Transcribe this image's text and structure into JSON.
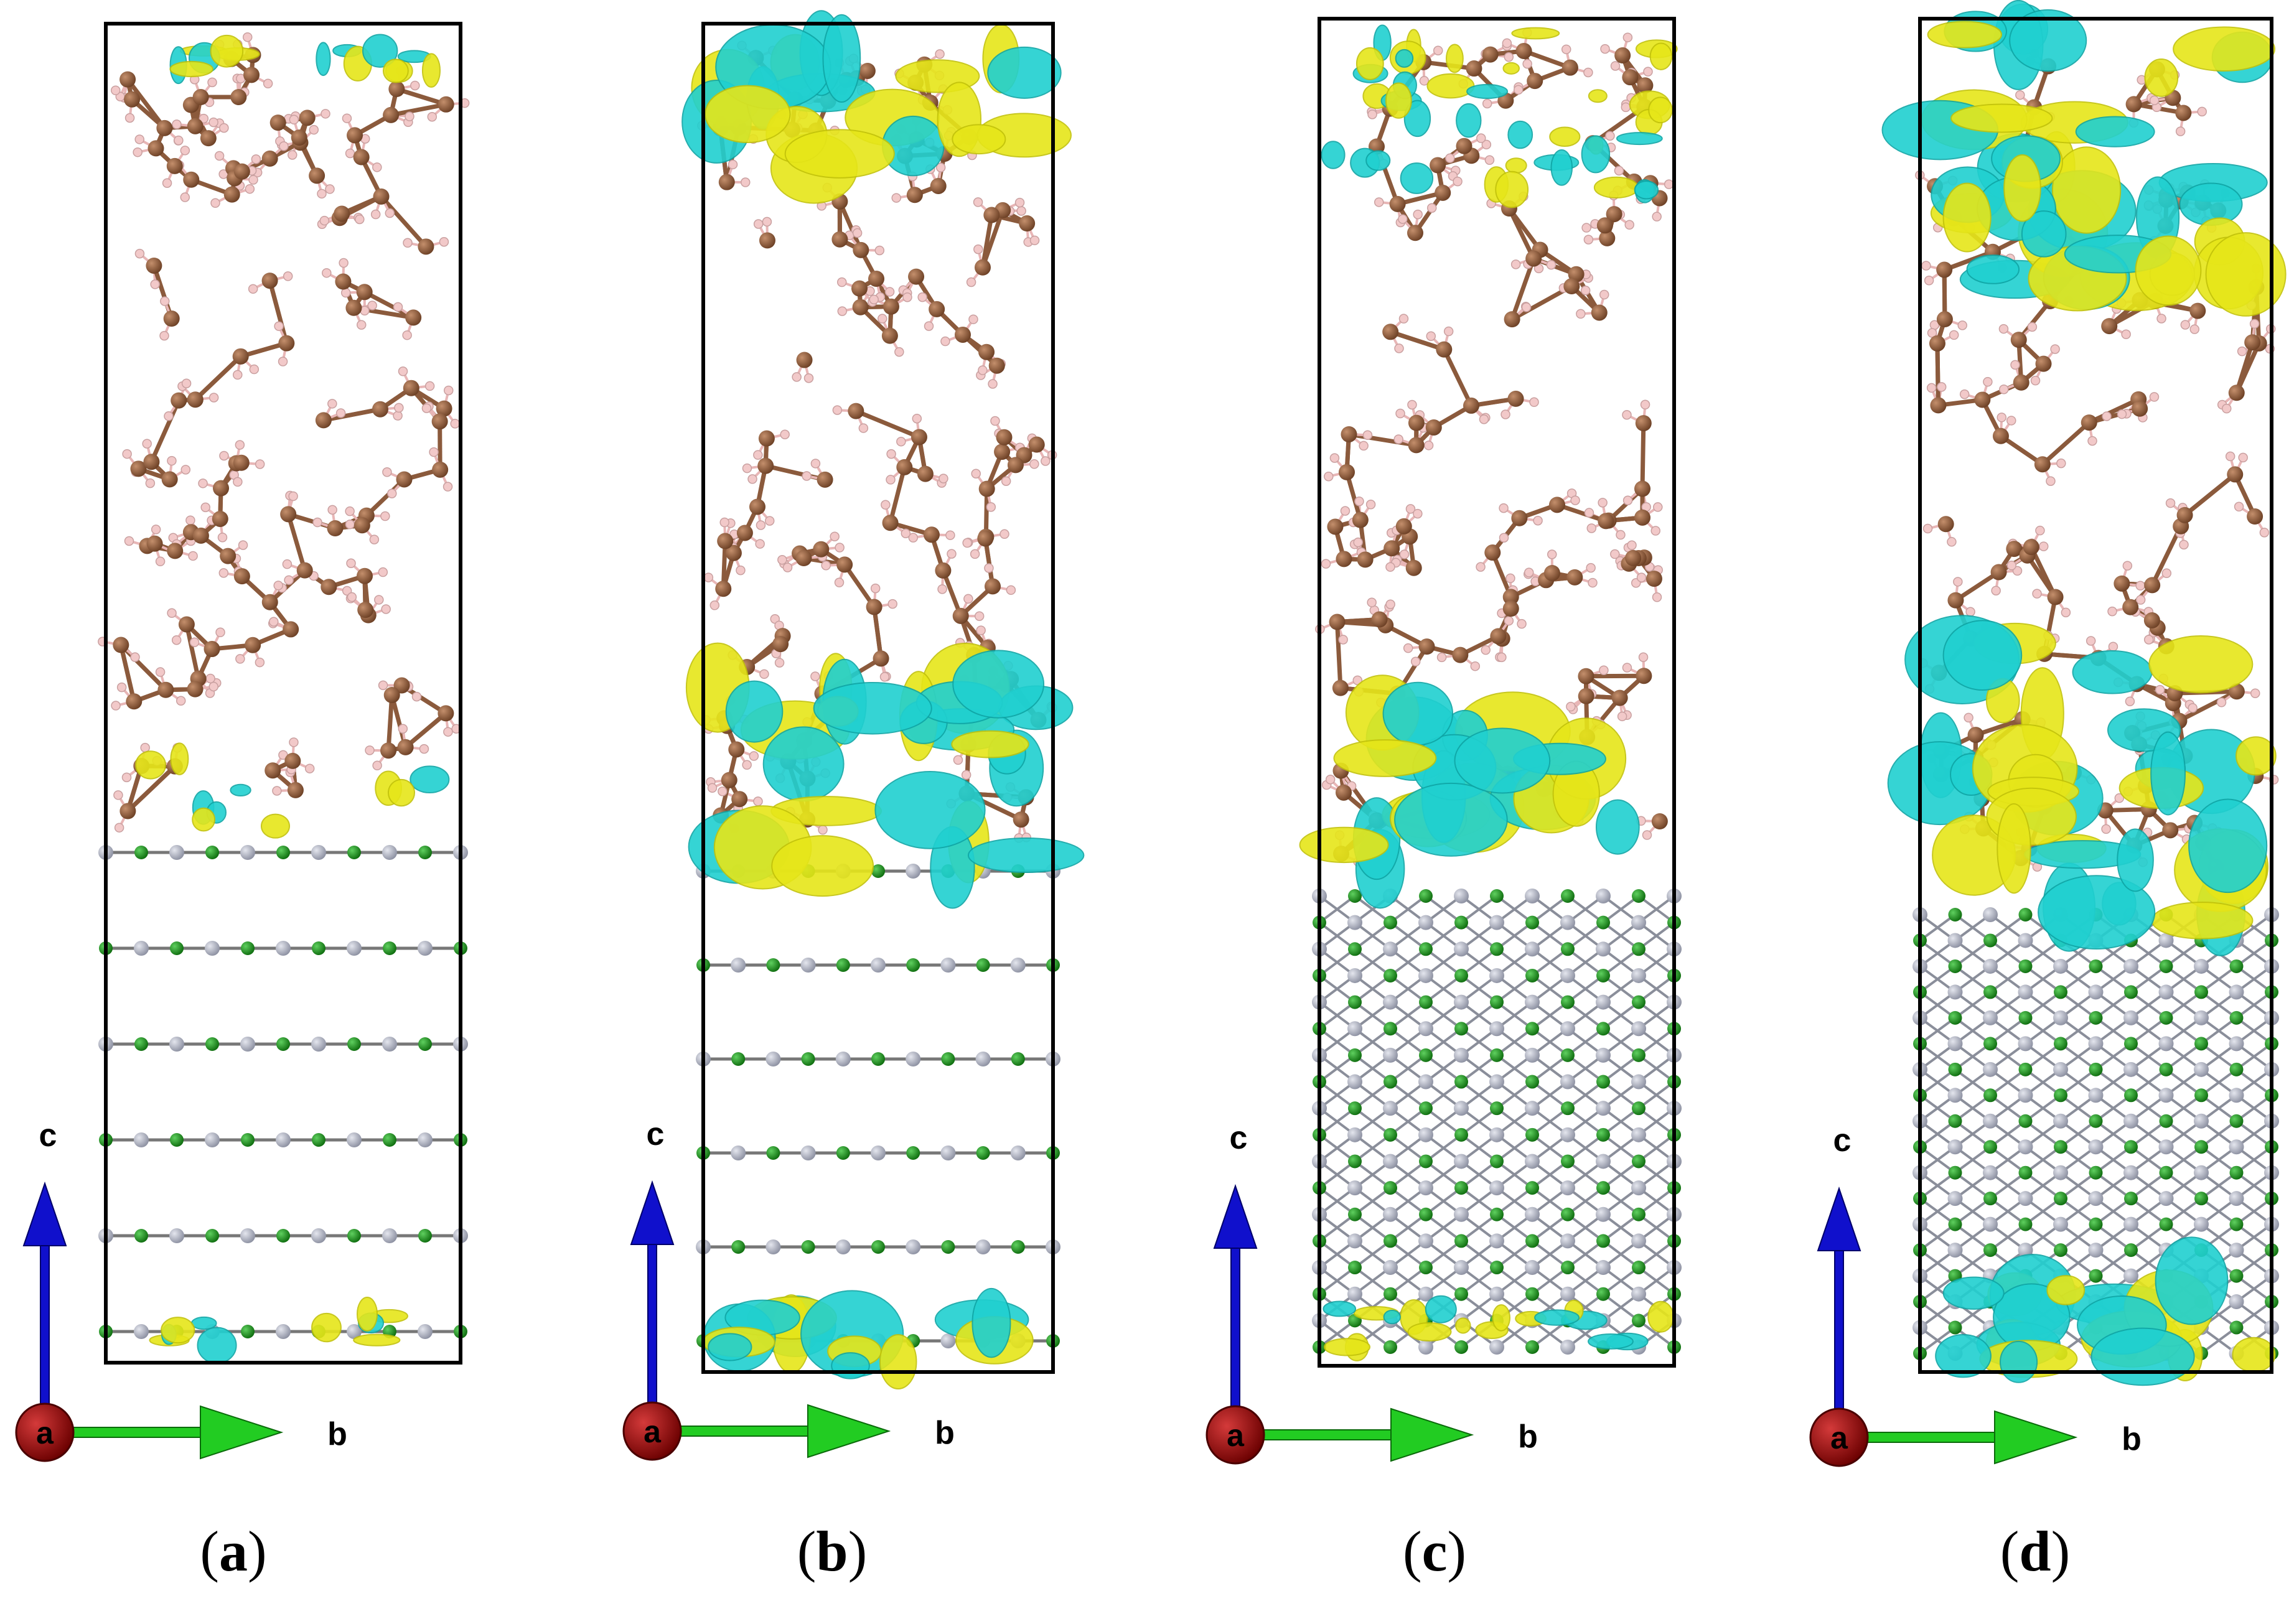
{
  "figure": {
    "panels": [
      {
        "id": "a",
        "label": "a",
        "axis_labels": {
          "c": "c",
          "b": "b",
          "a": "a"
        }
      },
      {
        "id": "b",
        "label": "b",
        "axis_labels": {
          "c": "c",
          "b": "b",
          "a": "a"
        }
      },
      {
        "id": "c",
        "label": "c",
        "axis_labels": {
          "c": "c",
          "b": "b",
          "a": "a"
        }
      },
      {
        "id": "d",
        "label": "d",
        "axis_labels": {
          "c": "c",
          "b": "b",
          "a": "a"
        }
      }
    ],
    "colors": {
      "carbon": "#8b5a3c",
      "hydrogen": "#f2c9c9",
      "boron": "#1f9a1f",
      "nitrogen": "#b8bccb",
      "charge_accumulation": "#e6e619",
      "charge_depletion": "#20d0d0",
      "axis_c": "#1010cc",
      "axis_b": "#22cc22",
      "axis_a": "#aa0000",
      "box": "#000000"
    }
  }
}
